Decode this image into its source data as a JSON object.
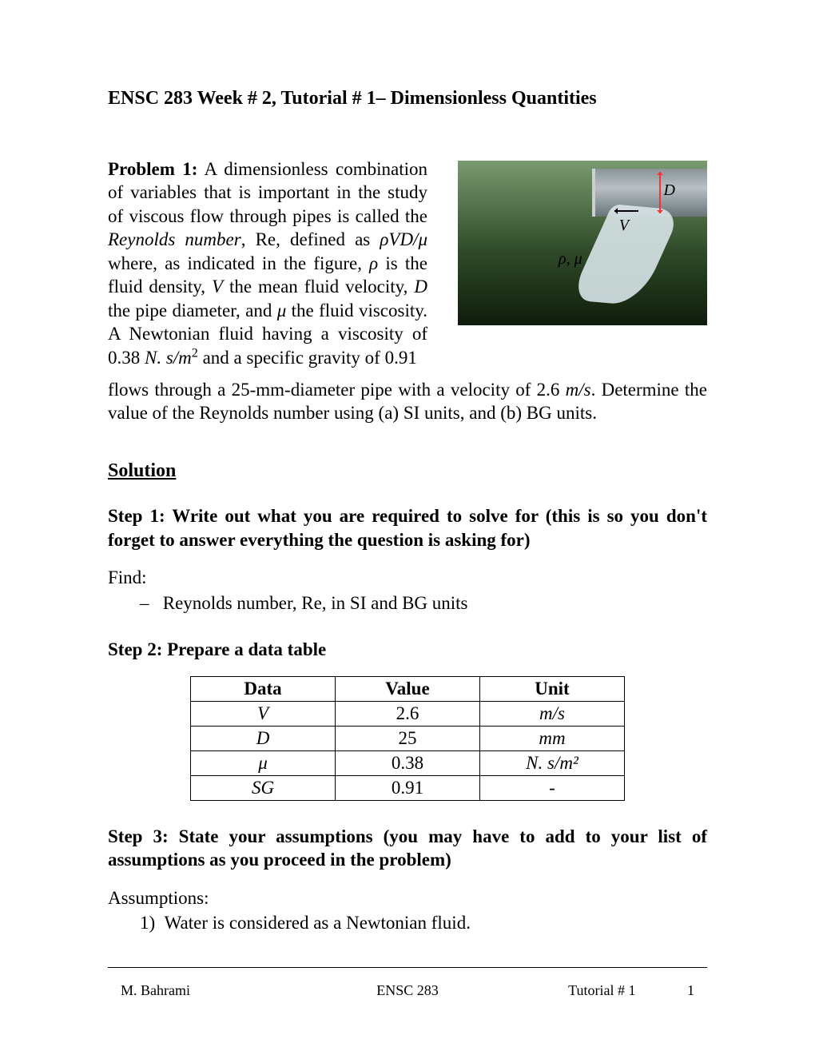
{
  "title": "ENSC 283 Week # 2, Tutorial # 1– Dimensionless Quantities",
  "problem": {
    "label": "Problem 1:",
    "text_left": " A dimensionless combination of variables that is important in the study of viscous flow through pipes is called the <span class=\"italic\">Reynolds number</span>, Re, defined as <span class=\"italic\">ρVD/μ</span> where, as indicated in the figure, <span class=\"italic\">ρ</span> is the fluid density, <span class=\"italic\">V</span> the mean fluid velocity, <span class=\"italic\">D</span> the pipe diameter, and <span class=\"italic\">μ</span> the fluid viscosity. A Newtonian fluid having a viscosity of 0.38 <span class=\"italic\">N. s/m</span><sup>2</sup> and a specific gravity of 0.91",
    "text_full": "flows through a 25-mm-diameter pipe with a velocity of 2.6 <span class=\"italic\">m/s</span>. Determine the value of the Reynolds number using (a) SI units, and (b) BG units."
  },
  "figure": {
    "labels": {
      "D": "D",
      "V": "V",
      "rho_mu": "ρ, μ"
    },
    "colors": {
      "grass_top": "#7a9a6f",
      "grass_mid": "#2f4a28",
      "grass_bottom": "#0e1c0b",
      "pipe": "#b8c0c4",
      "water": "#d8e4e8",
      "d_arrow": "#ff3030"
    }
  },
  "solution_heading": "Solution",
  "step1": {
    "heading": "Step 1: Write out what you are required to solve for (this is so you don't forget to answer everything the question is asking for)",
    "find_label": "Find:",
    "find_item": "Reynolds number, Re, in SI and BG units"
  },
  "step2": {
    "heading": "Step 2: Prepare a data table",
    "table": {
      "columns": [
        "Data",
        "Value",
        "Unit"
      ],
      "rows": [
        {
          "data": "V",
          "value": "2.6",
          "unit": "m/s",
          "italic_data": true,
          "italic_unit": true
        },
        {
          "data": "D",
          "value": "25",
          "unit": "mm",
          "italic_data": true,
          "italic_unit": true
        },
        {
          "data": "μ",
          "value": "0.38",
          "unit": "N. s/m²",
          "italic_data": true,
          "italic_unit": true
        },
        {
          "data": "SG",
          "value": "0.91",
          "unit": "-",
          "italic_data": true,
          "italic_unit": false
        }
      ]
    }
  },
  "step3": {
    "heading": "Step 3: State your assumptions (you may have to add to your list of assumptions as you proceed in the problem)",
    "assumptions_label": "Assumptions:",
    "assumption_item": "Water is considered as a Newtonian fluid."
  },
  "footer": {
    "left": "M. Bahrami",
    "center": "ENSC 283",
    "right": "Tutorial # 1",
    "page": "1"
  }
}
